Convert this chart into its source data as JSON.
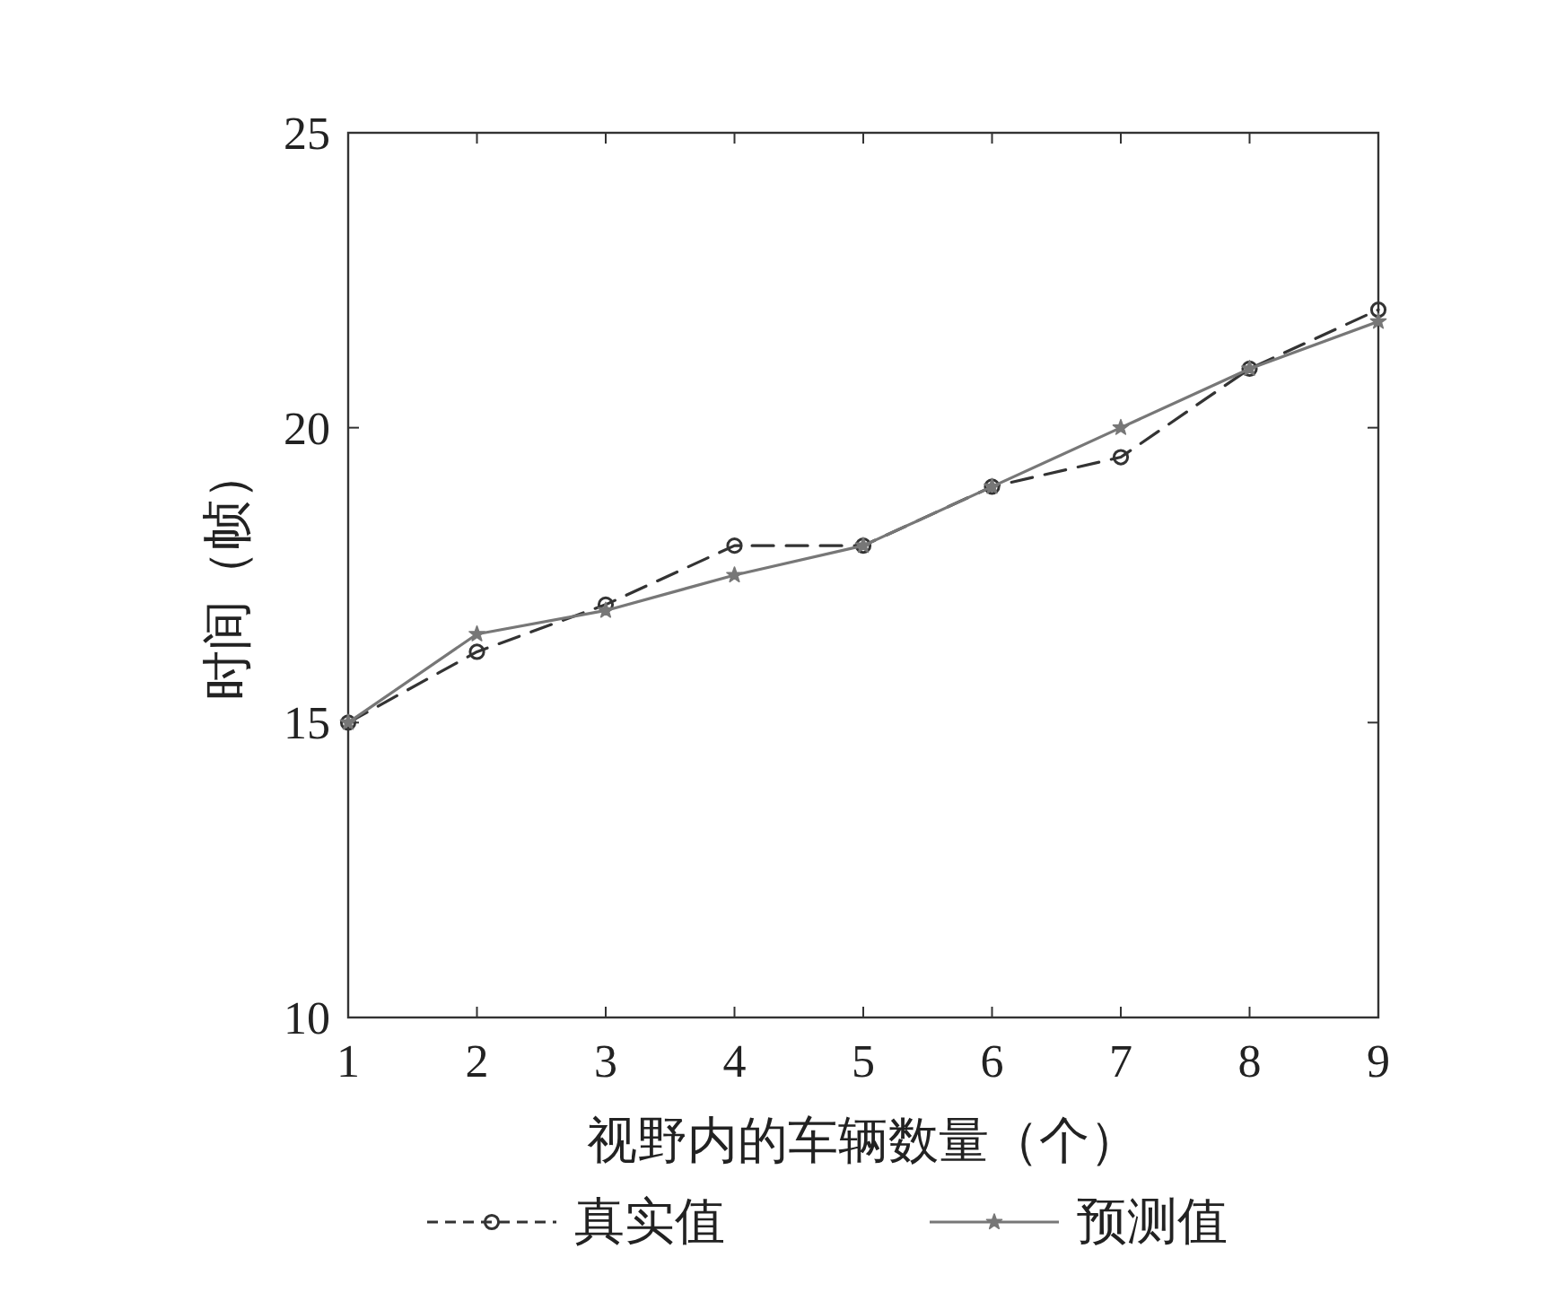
{
  "chart_data": {
    "type": "line",
    "xlabel": "视野内的车辆数量（个）",
    "ylabel": "时间（帧）",
    "x": [
      1,
      2,
      3,
      4,
      5,
      6,
      7,
      8,
      9
    ],
    "series": [
      {
        "name": "真实值",
        "color": "#333333",
        "marker": "circle",
        "line_style": "dashed",
        "values": [
          15,
          16.2,
          17,
          18,
          18,
          19,
          19.5,
          21,
          22
        ]
      },
      {
        "name": "预测值",
        "color": "#777777",
        "marker": "star",
        "line_style": "solid",
        "values": [
          15,
          16.5,
          16.9,
          17.5,
          18,
          19,
          20,
          21,
          21.8
        ]
      }
    ],
    "xlim": [
      1,
      9
    ],
    "xticks": [
      1,
      2,
      3,
      4,
      5,
      6,
      7,
      8,
      9
    ],
    "ylim": [
      10,
      25
    ],
    "yticks": [
      10,
      15,
      20,
      25
    ],
    "legend": "bottom"
  }
}
